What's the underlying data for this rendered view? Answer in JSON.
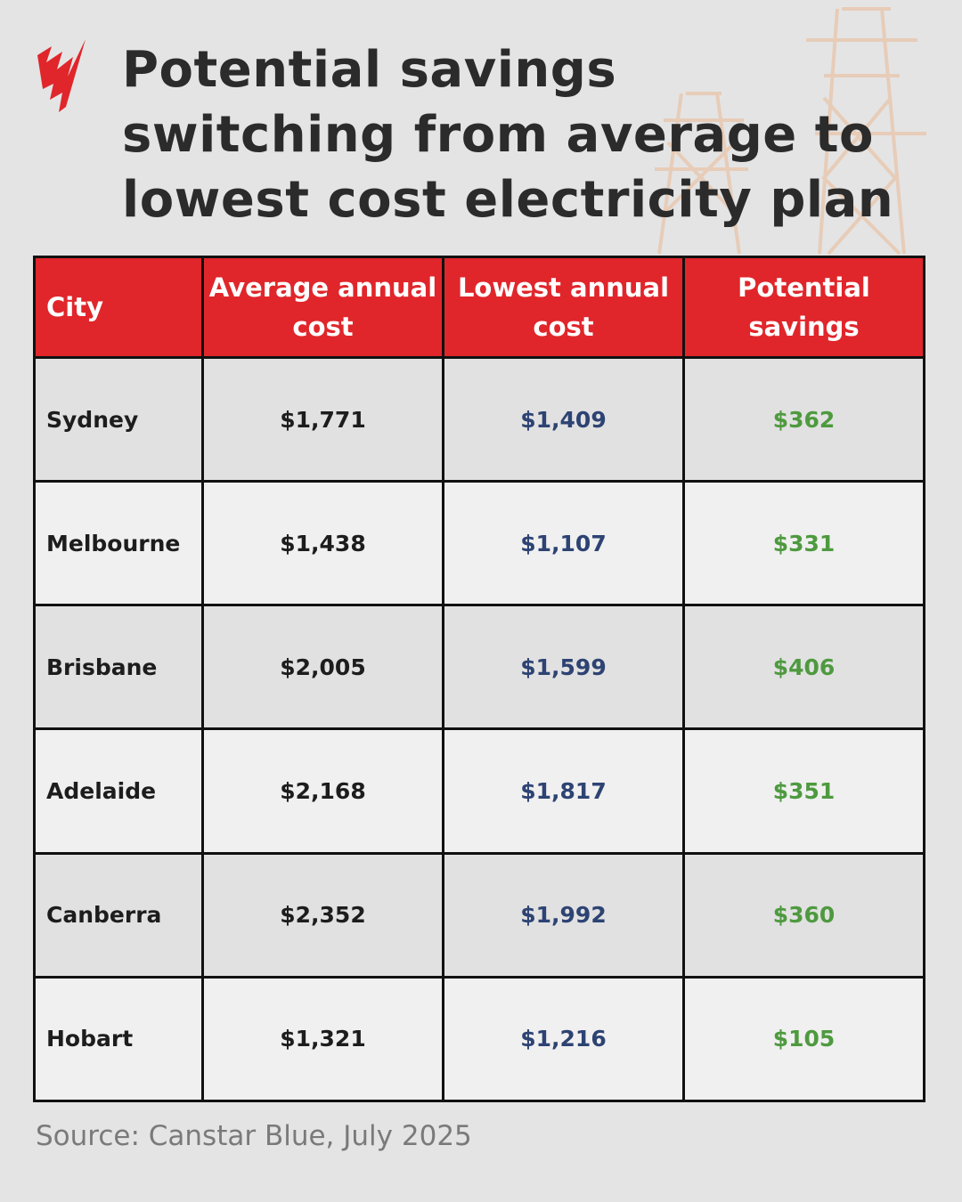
{
  "header": {
    "title": "Potential savings switching from average to lowest cost electricity plan"
  },
  "table": {
    "columns": [
      "City",
      "Average annual cost",
      "Lowest annual cost",
      "Potential savings"
    ],
    "rows": [
      [
        "Sydney",
        "$1,771",
        "$1,409",
        "$362"
      ],
      [
        "Melbourne",
        "$1,438",
        "$1,107",
        "$331"
      ],
      [
        "Brisbane",
        "$2,005",
        "$1,599",
        "$406"
      ],
      [
        "Adelaide",
        "$2,168",
        "$1,817",
        "$351"
      ],
      [
        "Canberra",
        "$2,352",
        "$1,992",
        "$360"
      ],
      [
        "Hobart",
        "$1,321",
        "$1,216",
        "$105"
      ]
    ]
  },
  "footer": {
    "source": "Source: Canstar Blue, July 2025"
  }
}
